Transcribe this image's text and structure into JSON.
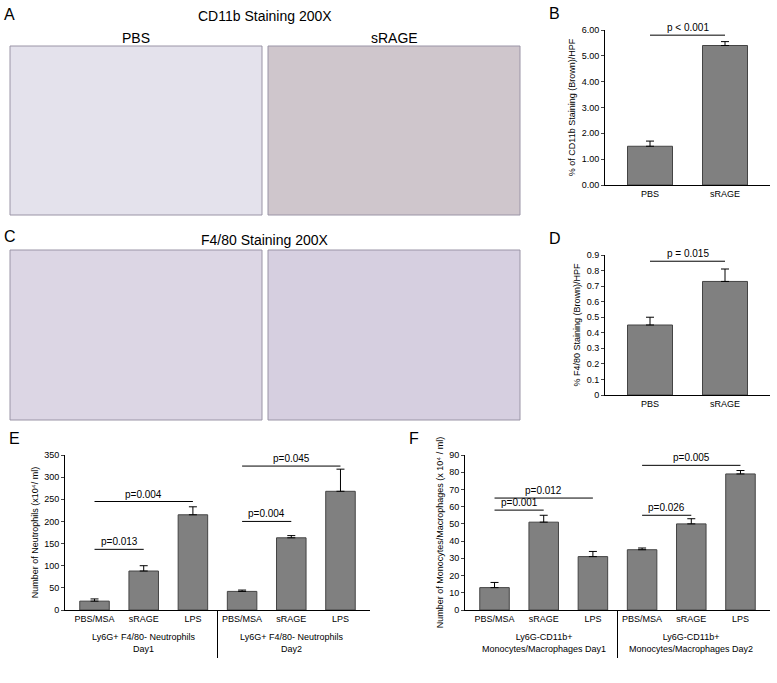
{
  "image_panels": [
    {
      "label": "A",
      "title": "CD11b Staining 200X",
      "subtitles": [
        "PBS",
        "sRAGE"
      ]
    },
    {
      "label": "C",
      "title": "F4/80 Staining 200X",
      "subtitles": []
    }
  ],
  "chart_data": [
    {
      "type": "bar",
      "panel_label": "B",
      "categories": [
        "PBS",
        "sRAGE"
      ],
      "values": [
        1.5,
        5.4
      ],
      "errors": [
        0.2,
        0.15
      ],
      "color": "#808080",
      "y_label": "% of CD11b Staining (Brown)/HPF",
      "ylim": [
        0,
        6
      ],
      "yticks": [
        {
          "value": 0,
          "label": "0.00"
        },
        {
          "value": 1,
          "label": "1.00"
        },
        {
          "value": 2,
          "label": "2.00"
        },
        {
          "value": 3,
          "label": "3.00"
        },
        {
          "value": 4,
          "label": "4.00"
        },
        {
          "value": 5,
          "label": "5.00"
        },
        {
          "value": 6,
          "label": "6.00"
        }
      ],
      "annotations": [
        {
          "text": "p < 0.001",
          "from": 0,
          "to": 1,
          "y": 5.8
        }
      ]
    },
    {
      "type": "bar",
      "panel_label": "D",
      "categories": [
        "PBS",
        "sRAGE"
      ],
      "values": [
        0.45,
        0.73
      ],
      "errors": [
        0.05,
        0.08
      ],
      "color": "#808080",
      "y_label": "% F4/80 Staining (Brown)/HPF",
      "ylim": [
        0,
        0.9
      ],
      "yticks": [
        0,
        0.1,
        0.2,
        0.3,
        0.4,
        0.5,
        0.6,
        0.7,
        0.8,
        0.9
      ],
      "annotations": [
        {
          "text": "p = 0.015",
          "from": 0,
          "to": 1,
          "y": 0.86
        }
      ]
    },
    {
      "type": "bar",
      "panel_label": "E",
      "categories": [
        "PBS/MSA",
        "sRAGE",
        "LPS",
        "PBS/MSA",
        "sRAGE",
        "LPS"
      ],
      "values": [
        20,
        88,
        215,
        42,
        163,
        268
      ],
      "errors": [
        5,
        12,
        18,
        3,
        5,
        50
      ],
      "color": "#808080",
      "y_label": "Number of Neutrophils (x10⁴/ ml)",
      "groups": [
        "Ly6G+ F4/80- Neutrophils\nDay1",
        "Ly6G+ F4/80- Neutrophils\nDay2"
      ],
      "ylim": [
        0,
        350
      ],
      "yticks": [
        0,
        50,
        100,
        150,
        200,
        250,
        300,
        350
      ],
      "annotations": [
        {
          "text": "p=0.013",
          "from": 0,
          "to": 1,
          "y": 137
        },
        {
          "text": "p=0.004",
          "from": 0,
          "to": 2,
          "y": 245
        },
        {
          "text": "p=0.004",
          "from": 3,
          "to": 4,
          "y": 200
        },
        {
          "text": "p=0.045",
          "from": 3,
          "to": 5,
          "y": 325
        }
      ]
    },
    {
      "type": "bar",
      "panel_label": "F",
      "categories": [
        "PBS/MSA",
        "sRAGE",
        "LPS",
        "PBS/MSA",
        "sRAGE",
        "LPS"
      ],
      "values": [
        13,
        51,
        31,
        35,
        50,
        79
      ],
      "errors": [
        3,
        4,
        3,
        1,
        3,
        2
      ],
      "color": "#808080",
      "y_label": "Number of Monocytes/Macrophages (x 10⁴ / ml)",
      "groups": [
        "Ly6G-CD11b+\nMonocytes/Macrophages Day1",
        "Ly6G-CD11b+\nMonocytes/Macrophages Day2"
      ],
      "ylim": [
        0,
        90
      ],
      "yticks": [
        0,
        10,
        20,
        30,
        40,
        50,
        60,
        70,
        80,
        90
      ],
      "annotations": [
        {
          "text": "p=0.001",
          "from": 0,
          "to": 1,
          "y": 58
        },
        {
          "text": "p=0.012",
          "from": 0,
          "to": 2,
          "y": 65
        },
        {
          "text": "p=0.026",
          "from": 3,
          "to": 4,
          "y": 55
        },
        {
          "text": "p=0.005",
          "from": 3,
          "to": 5,
          "y": 84
        }
      ]
    }
  ]
}
